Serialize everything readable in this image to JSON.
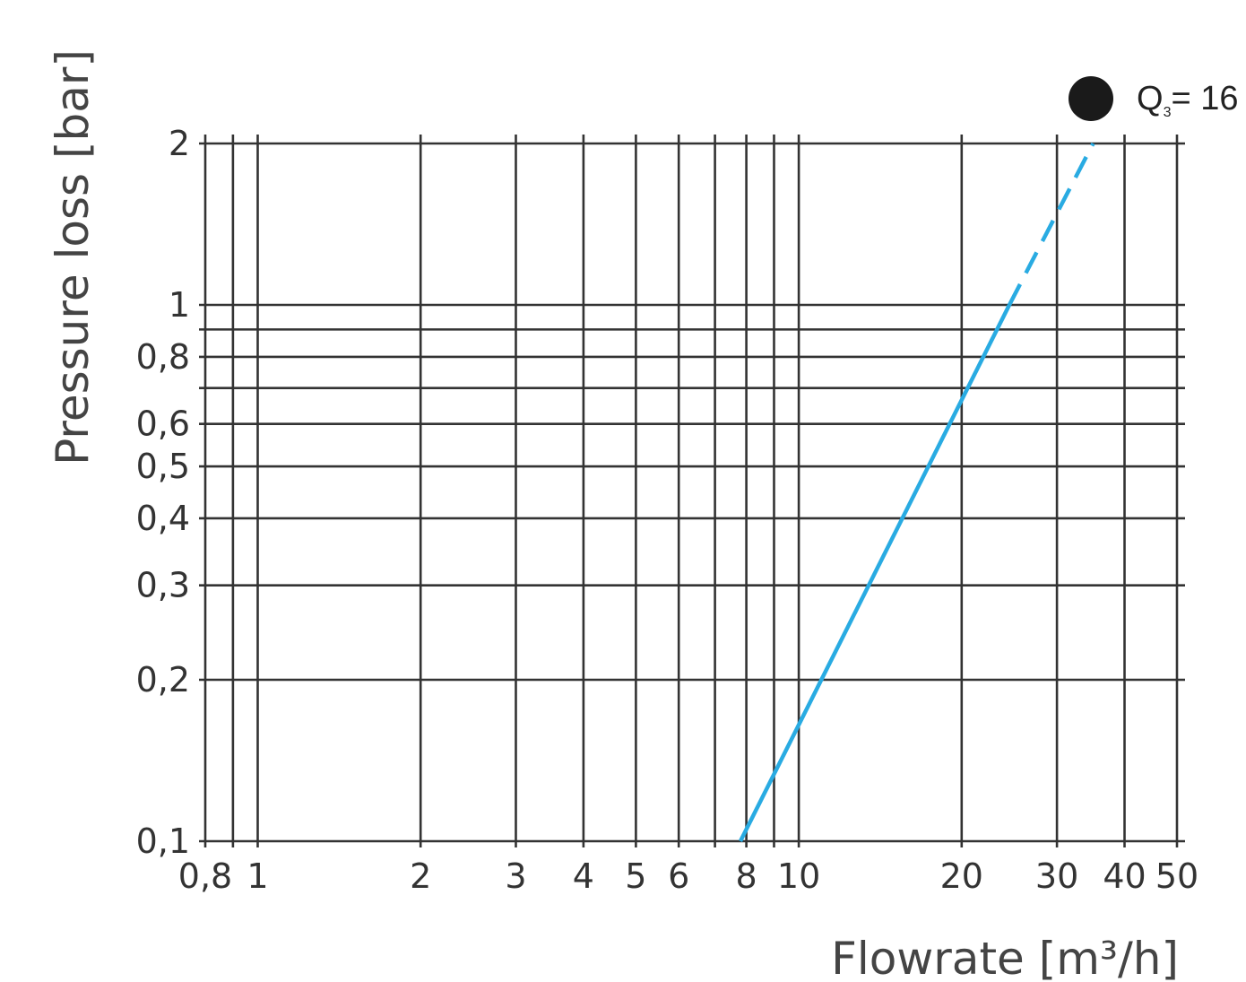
{
  "chart_data": {
    "type": "line",
    "x_scale": "log",
    "y_scale": "log",
    "xlabel": "Flowrate [m³/h]",
    "ylabel": "Pressure loss [bar]",
    "xlim": [
      0.8,
      50
    ],
    "ylim": [
      0.1,
      2
    ],
    "x_tick_labels": [
      {
        "value": 0.8,
        "label": "0,8"
      },
      {
        "value": 1,
        "label": "1"
      },
      {
        "value": 2,
        "label": "2"
      },
      {
        "value": 3,
        "label": "3"
      },
      {
        "value": 4,
        "label": "4"
      },
      {
        "value": 5,
        "label": "5"
      },
      {
        "value": 6,
        "label": "6"
      },
      {
        "value": 8,
        "label": "8"
      },
      {
        "value": 10,
        "label": "10"
      },
      {
        "value": 20,
        "label": "20"
      },
      {
        "value": 30,
        "label": "30"
      },
      {
        "value": 40,
        "label": "40"
      },
      {
        "value": 50,
        "label": "50"
      }
    ],
    "y_tick_labels": [
      {
        "value": 0.1,
        "label": "0,1"
      },
      {
        "value": 0.2,
        "label": "0,2"
      },
      {
        "value": 0.3,
        "label": "0,3"
      },
      {
        "value": 0.4,
        "label": "0,4"
      },
      {
        "value": 0.5,
        "label": "0,5"
      },
      {
        "value": 0.6,
        "label": "0,6"
      },
      {
        "value": 0.8,
        "label": "0,8"
      },
      {
        "value": 1,
        "label": "1"
      },
      {
        "value": 2,
        "label": "2"
      }
    ],
    "x_gridlines": [
      0.8,
      0.9,
      1,
      2,
      3,
      4,
      5,
      6,
      7,
      8,
      9,
      10,
      20,
      30,
      40,
      50
    ],
    "y_gridlines": [
      0.1,
      0.2,
      0.3,
      0.4,
      0.5,
      0.6,
      0.7,
      0.8,
      0.9,
      1,
      2
    ],
    "grid": true,
    "series": [
      {
        "name": "Q₃= 16",
        "color": "#29abe2",
        "marker_color": "#1a1a1a",
        "segments": [
          {
            "style": "solid",
            "points": [
              [
                7.8,
                0.1
              ],
              [
                24.5,
                1.0
              ]
            ]
          },
          {
            "style": "dashed",
            "points": [
              [
                24.5,
                1.0
              ],
              [
                35,
                2.0
              ]
            ]
          }
        ]
      }
    ],
    "legend": {
      "position": "top-right",
      "entries": [
        {
          "label": "Q",
          "subscript": "3",
          "suffix": "= 16"
        }
      ]
    }
  }
}
